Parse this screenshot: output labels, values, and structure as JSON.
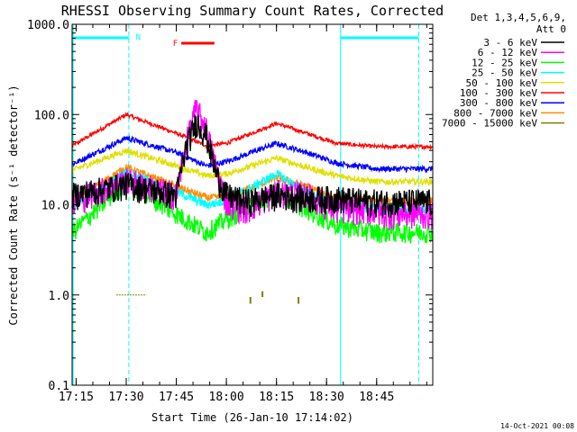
{
  "chart_data": {
    "type": "line",
    "title": "RHESSI Observing Summary Count Rates, Corrected",
    "xlabel": "Start Time (26-Jan-10 17:14:02)",
    "ylabel": "Corrected Count Rate (s⁻¹ detector⁻¹)",
    "yscale": "log",
    "ylim": [
      0.1,
      1000
    ],
    "xlim_minutes": [
      17.23,
      19.03
    ],
    "x_units": "hours (UT)",
    "x_ticks": [
      {
        "value": 17.25,
        "label": "17:15"
      },
      {
        "value": 17.5,
        "label": "17:30"
      },
      {
        "value": 17.75,
        "label": "17:45"
      },
      {
        "value": 18.0,
        "label": "18:00"
      },
      {
        "value": 18.25,
        "label": "18:15"
      },
      {
        "value": 18.5,
        "label": "18:30"
      },
      {
        "value": 18.75,
        "label": "18:45"
      }
    ],
    "y_ticks": [
      {
        "value": 0.1,
        "label": "0.1"
      },
      {
        "value": 1,
        "label": "1.0"
      },
      {
        "value": 10,
        "label": "10.0"
      },
      {
        "value": 100,
        "label": "100.0"
      },
      {
        "value": 1000,
        "label": "1000.0"
      }
    ],
    "legend": {
      "placement": "right",
      "header": [
        "Det 1,3,4,5,6,9,",
        "Att 0"
      ]
    },
    "series": [
      {
        "name": "3 - 6 keV",
        "color": "#000000",
        "x": [
          17.23,
          17.5,
          17.75,
          17.8,
          17.85,
          17.9,
          17.95,
          18.0,
          18.1,
          18.25,
          18.4,
          18.55,
          18.7,
          18.8,
          19.03
        ],
        "y": [
          13,
          17,
          13,
          45,
          85,
          60,
          22,
          13,
          11,
          13,
          12,
          12,
          11,
          11,
          11
        ]
      },
      {
        "name": "6 - 12 keV",
        "color": "#ff00ff",
        "x": [
          17.23,
          17.5,
          17.75,
          17.8,
          17.85,
          17.9,
          17.95,
          18.0,
          18.1,
          18.25,
          18.4,
          18.55,
          18.7,
          18.8,
          19.03
        ],
        "y": [
          11,
          19,
          13,
          50,
          120,
          70,
          25,
          11,
          9,
          14,
          13,
          9,
          9,
          8,
          8
        ]
      },
      {
        "name": "12 - 25 keV",
        "color": "#00ff00",
        "x": [
          17.23,
          17.5,
          17.75,
          17.9,
          18.0,
          18.25,
          18.4,
          18.55,
          18.75,
          19.03
        ],
        "y": [
          5,
          18,
          8,
          5,
          7,
          14,
          9,
          6,
          5,
          5
        ]
      },
      {
        "name": "25 - 50 keV",
        "color": "#00ffff",
        "x": [
          17.23,
          17.5,
          17.75,
          17.9,
          18.0,
          18.25,
          18.4,
          18.55,
          18.75,
          19.03
        ],
        "y": [
          9,
          23,
          14,
          10,
          11,
          22,
          14,
          10,
          9,
          9
        ]
      },
      {
        "name": "50 - 100 keV",
        "color": "#e0e000",
        "x": [
          17.23,
          17.5,
          17.75,
          17.9,
          18.0,
          18.25,
          18.4,
          18.55,
          18.75,
          19.03
        ],
        "y": [
          24,
          40,
          27,
          21,
          22,
          33,
          26,
          21,
          18,
          18
        ]
      },
      {
        "name": "100 - 300 keV",
        "color": "#ff0000",
        "x": [
          17.23,
          17.5,
          17.75,
          17.9,
          18.0,
          18.25,
          18.4,
          18.55,
          18.75,
          19.03
        ],
        "y": [
          45,
          100,
          62,
          45,
          48,
          80,
          62,
          48,
          44,
          44
        ]
      },
      {
        "name": "300 - 800 keV",
        "color": "#0000ff",
        "x": [
          17.23,
          17.5,
          17.75,
          17.9,
          18.0,
          18.25,
          18.4,
          18.55,
          18.75,
          19.03
        ],
        "y": [
          28,
          55,
          38,
          27,
          30,
          48,
          38,
          29,
          25,
          25
        ]
      },
      {
        "name": "800 - 7000 keV",
        "color": "#ff8c00",
        "x": [
          17.23,
          17.5,
          17.75,
          17.9,
          18.0,
          18.25,
          18.4,
          18.55,
          18.75,
          19.03
        ],
        "y": [
          11,
          26,
          16,
          12,
          12,
          20,
          16,
          12,
          11,
          11
        ]
      },
      {
        "name": "7000 - 15000 keV",
        "color": "#808000",
        "x": [],
        "y": []
      }
    ],
    "annotations": {
      "night_bar_label": "N",
      "flare_bar_label": "F",
      "night_bar_color": "#00ffff",
      "flare_bar_color": "#ff0000"
    }
  },
  "footer": {
    "timestamp": "14-Oct-2021 00:08"
  }
}
